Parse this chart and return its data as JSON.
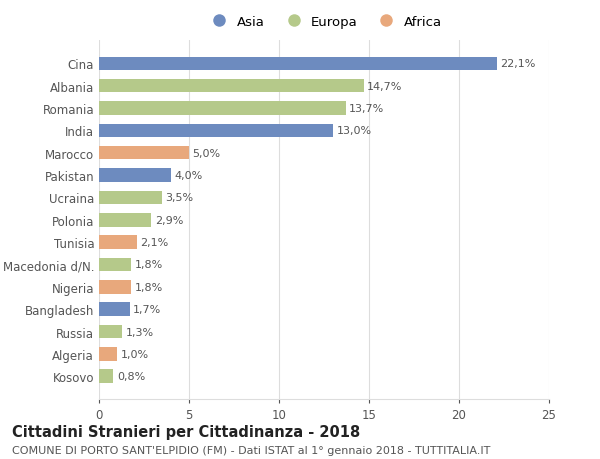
{
  "categories": [
    "Kosovo",
    "Algeria",
    "Russia",
    "Bangladesh",
    "Nigeria",
    "Macedonia d/N.",
    "Tunisia",
    "Polonia",
    "Ucraina",
    "Pakistan",
    "Marocco",
    "India",
    "Romania",
    "Albania",
    "Cina"
  ],
  "values": [
    0.8,
    1.0,
    1.3,
    1.7,
    1.8,
    1.8,
    2.1,
    2.9,
    3.5,
    4.0,
    5.0,
    13.0,
    13.7,
    14.7,
    22.1
  ],
  "labels": [
    "0,8%",
    "1,0%",
    "1,3%",
    "1,7%",
    "1,8%",
    "1,8%",
    "2,1%",
    "2,9%",
    "3,5%",
    "4,0%",
    "5,0%",
    "13,0%",
    "13,7%",
    "14,7%",
    "22,1%"
  ],
  "continent": [
    "Europa",
    "Africa",
    "Europa",
    "Asia",
    "Africa",
    "Europa",
    "Africa",
    "Europa",
    "Europa",
    "Asia",
    "Africa",
    "Asia",
    "Europa",
    "Europa",
    "Asia"
  ],
  "colors": {
    "Asia": "#6d8bbf",
    "Europa": "#b5c98a",
    "Africa": "#e8a87c"
  },
  "legend": [
    "Asia",
    "Europa",
    "Africa"
  ],
  "legend_colors": [
    "#6d8bbf",
    "#b5c98a",
    "#e8a87c"
  ],
  "xlim": [
    0,
    25
  ],
  "xticks": [
    0,
    5,
    10,
    15,
    20,
    25
  ],
  "title": "Cittadini Stranieri per Cittadinanza - 2018",
  "subtitle": "COMUNE DI PORTO SANT'ELPIDIO (FM) - Dati ISTAT al 1° gennaio 2018 - TUTTITALIA.IT",
  "title_fontsize": 10.5,
  "subtitle_fontsize": 8.0,
  "background_color": "#ffffff",
  "grid_color": "#dddddd",
  "label_fontsize": 8.0,
  "tick_fontsize": 8.5,
  "bar_height": 0.6
}
